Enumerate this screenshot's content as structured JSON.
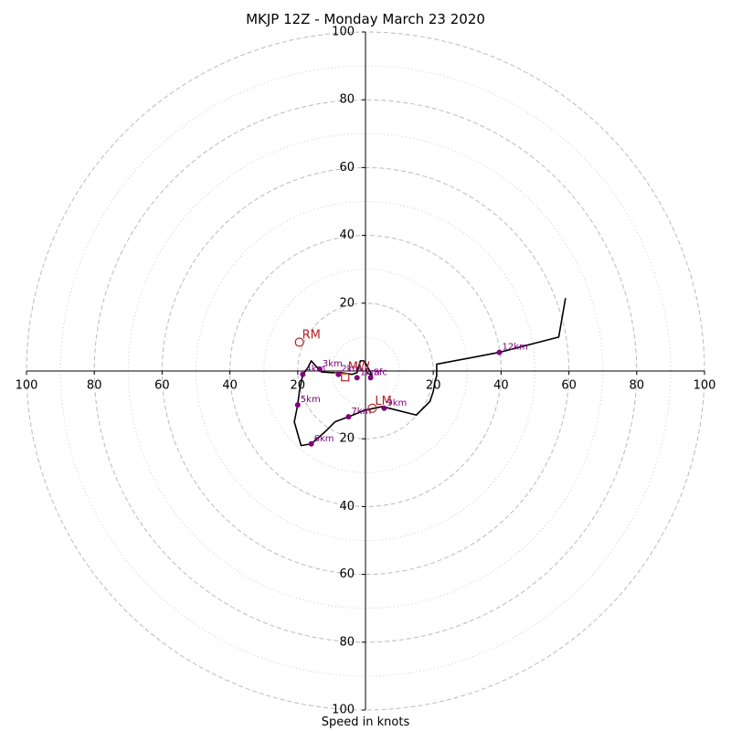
{
  "chart_data": {
    "type": "hodograph",
    "title": "MKJP 12Z - Monday March 23 2020",
    "xlabel": "Speed in knots",
    "range": 100,
    "ring_major": [
      20,
      40,
      60,
      80,
      100
    ],
    "ring_minor": [
      10,
      30,
      50,
      70,
      90
    ],
    "tick_values": [
      20,
      40,
      60,
      80,
      100
    ],
    "hodograph_uv": [
      [
        0.5,
        -0.5
      ],
      [
        2,
        -1.5
      ],
      [
        1.5,
        -0.5
      ],
      [
        0.2,
        2
      ],
      [
        -0.5,
        3
      ],
      [
        -1.5,
        3
      ],
      [
        -2.5,
        -0.5
      ],
      [
        -4,
        -1
      ],
      [
        -7,
        -0.5
      ],
      [
        -10,
        -0.5
      ],
      [
        -13,
        -0.3
      ],
      [
        -14,
        0.7
      ],
      [
        -16,
        3
      ],
      [
        -17,
        1
      ],
      [
        -18.5,
        -1
      ],
      [
        -19.5,
        -6
      ],
      [
        -20,
        -10
      ],
      [
        -21,
        -15
      ],
      [
        -19,
        -22
      ],
      [
        -16,
        -21.5
      ],
      [
        -12,
        -18
      ],
      [
        -9,
        -15
      ],
      [
        -5,
        -13.5
      ],
      [
        0,
        -11.5
      ],
      [
        5,
        -10.5
      ],
      [
        15,
        -13
      ],
      [
        19,
        -9
      ],
      [
        20,
        -6
      ],
      [
        20.5,
        -3
      ],
      [
        21,
        -1.5
      ],
      [
        21,
        2
      ],
      [
        39.5,
        5.5
      ],
      [
        57,
        10
      ],
      [
        59,
        21.5
      ]
    ],
    "height_markers": [
      {
        "label": "Sfc",
        "u": 1.5,
        "v": -2
      },
      {
        "label": "1km",
        "u": -2.5,
        "v": -2
      },
      {
        "label": "2km",
        "u": -8,
        "v": -1
      },
      {
        "label": "3km",
        "u": -13.5,
        "v": 0.5
      },
      {
        "label": "4km",
        "u": -18.5,
        "v": -1
      },
      {
        "label": "5km",
        "u": -20,
        "v": -10
      },
      {
        "label": "6km",
        "u": -16,
        "v": -21.5
      },
      {
        "label": "7km",
        "u": -5,
        "v": -13.5
      },
      {
        "label": "9km",
        "u": 5.5,
        "v": -11
      },
      {
        "label": "12km",
        "u": 39.5,
        "v": 5.5
      }
    ],
    "motion_markers": [
      {
        "label": "RM",
        "u": -19.5,
        "v": 8.5
      },
      {
        "label": "LM",
        "u": 2,
        "v": -11
      },
      {
        "label": "MW",
        "u": -6,
        "v": -1
      }
    ],
    "colors": {
      "hodograph": "#000000",
      "height": "#800080",
      "motion": "#b22222",
      "mean_wind_box": "#b22222",
      "shear_line": "#ff6600",
      "grid": "#bbbbbb"
    }
  }
}
